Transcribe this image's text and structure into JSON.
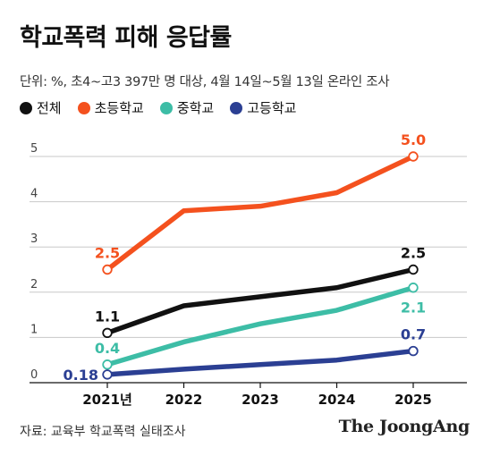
{
  "title": "학교폭력 피해 응답률",
  "subtitle": "단위: %,  초4~고3 397만 명 대상, 4월 14일~5월 13일 온라인 조사",
  "source": "자료: 교육부 학교폭력 실태조사",
  "logo": "The JoongAng",
  "chart_data": {
    "type": "line",
    "x": [
      "2021년",
      "2022",
      "2023",
      "2024",
      "2025"
    ],
    "ylim": [
      0,
      5
    ],
    "y_ticks": [
      "0",
      "1",
      "2",
      "3",
      "4",
      "5"
    ],
    "grid": true,
    "legend_position": "top-left",
    "series": [
      {
        "name": "전체",
        "color": "#111111",
        "values": [
          1.1,
          1.7,
          1.9,
          2.1,
          2.5
        ],
        "labels": [
          {
            "index": 0,
            "text": "1.1",
            "pos": "above"
          },
          {
            "index": 4,
            "text": "2.5",
            "pos": "above"
          }
        ]
      },
      {
        "name": "초등학교",
        "color": "#F4511E",
        "values": [
          2.5,
          3.8,
          3.9,
          4.2,
          5.0
        ],
        "labels": [
          {
            "index": 0,
            "text": "2.5",
            "pos": "above"
          },
          {
            "index": 4,
            "text": "5.0",
            "pos": "above"
          }
        ]
      },
      {
        "name": "중학교",
        "color": "#3DBDA6",
        "values": [
          0.4,
          0.9,
          1.3,
          1.6,
          2.1
        ],
        "labels": [
          {
            "index": 0,
            "text": "0.4",
            "pos": "above"
          },
          {
            "index": 4,
            "text": "2.1",
            "pos": "below"
          }
        ]
      },
      {
        "name": "고등학교",
        "color": "#2B3F93",
        "values": [
          0.18,
          0.3,
          0.4,
          0.5,
          0.7
        ],
        "labels": [
          {
            "index": 0,
            "text": "0.18",
            "pos": "left"
          },
          {
            "index": 4,
            "text": "0.7",
            "pos": "above"
          }
        ]
      }
    ]
  }
}
